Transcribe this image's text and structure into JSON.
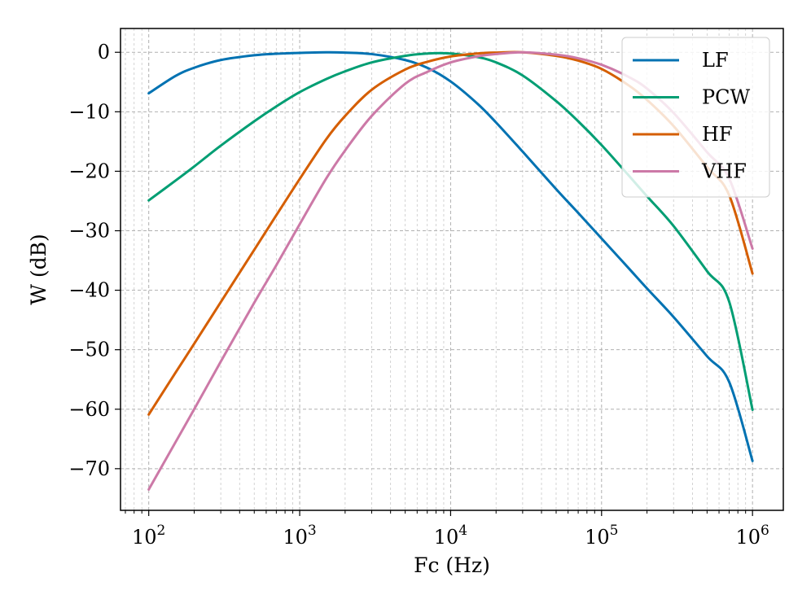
{
  "chart_data": {
    "type": "line",
    "title": "",
    "xlabel": "Fc (Hz)",
    "ylabel": "W (dB)",
    "xscale": "log",
    "xlim": [
      65,
      1600000
    ],
    "ylim": [
      -77,
      4
    ],
    "x_ticks": [
      {
        "value": 100,
        "base": "10",
        "exp": "2"
      },
      {
        "value": 1000,
        "base": "10",
        "exp": "3"
      },
      {
        "value": 10000,
        "base": "10",
        "exp": "4"
      },
      {
        "value": 100000,
        "base": "10",
        "exp": "5"
      },
      {
        "value": 1000000,
        "base": "10",
        "exp": "6"
      }
    ],
    "y_ticks": [
      {
        "value": 0,
        "label": "0"
      },
      {
        "value": -10,
        "label": "−10"
      },
      {
        "value": -20,
        "label": "−20"
      },
      {
        "value": -30,
        "label": "−30"
      },
      {
        "value": -40,
        "label": "−40"
      },
      {
        "value": -50,
        "label": "−50"
      },
      {
        "value": -60,
        "label": "−60"
      },
      {
        "value": -70,
        "label": "−70"
      }
    ],
    "grid": true,
    "legend_position": "top-right",
    "series": [
      {
        "name": "LF",
        "color": "#0072b2",
        "x": [
          100,
          150,
          200,
          300,
          500,
          700,
          1000,
          1500,
          2000,
          3000,
          5000,
          7000,
          10000,
          15000,
          20000,
          30000,
          50000,
          70000,
          100000,
          150000,
          200000,
          300000,
          500000,
          700000,
          1000000
        ],
        "y": [
          -6.9,
          -4.0,
          -2.6,
          -1.3,
          -0.5,
          -0.25,
          -0.1,
          0.0,
          -0.05,
          -0.3,
          -1.3,
          -2.6,
          -4.9,
          -8.6,
          -11.8,
          -16.7,
          -23.0,
          -27.0,
          -31.3,
          -36.2,
          -39.7,
          -44.5,
          -51.1,
          -55.4,
          -68.7
        ]
      },
      {
        "name": "PCW",
        "color": "#009e73",
        "x": [
          100,
          150,
          200,
          300,
          500,
          700,
          1000,
          1500,
          2000,
          3000,
          5000,
          7000,
          10000,
          15000,
          20000,
          30000,
          50000,
          70000,
          100000,
          150000,
          200000,
          300000,
          500000,
          700000,
          1000000
        ],
        "y": [
          -24.9,
          -21.6,
          -19.2,
          -15.7,
          -11.6,
          -9.1,
          -6.7,
          -4.5,
          -3.2,
          -1.7,
          -0.6,
          -0.2,
          -0.2,
          -0.8,
          -1.7,
          -3.9,
          -8.2,
          -11.6,
          -15.6,
          -20.6,
          -24.2,
          -29.2,
          -36.8,
          -41.9,
          -60.1
        ]
      },
      {
        "name": "HF",
        "color": "#d55e00",
        "x": [
          100,
          150,
          200,
          300,
          500,
          700,
          1000,
          1500,
          2000,
          3000,
          5000,
          7000,
          10000,
          15000,
          20000,
          30000,
          50000,
          70000,
          100000,
          150000,
          200000,
          300000,
          500000,
          700000,
          1000000
        ],
        "y": [
          -60.9,
          -53.9,
          -49.0,
          -42.0,
          -33.2,
          -27.4,
          -21.3,
          -14.6,
          -10.7,
          -6.3,
          -2.9,
          -1.6,
          -0.7,
          -0.2,
          -0.05,
          0.0,
          -0.6,
          -1.4,
          -2.8,
          -5.5,
          -8.0,
          -12.4,
          -19.3,
          -24.0,
          -37.2
        ]
      },
      {
        "name": "VHF",
        "color": "#cc79a7",
        "x": [
          100,
          150,
          200,
          300,
          500,
          700,
          1000,
          1500,
          2000,
          3000,
          5000,
          7000,
          10000,
          15000,
          20000,
          30000,
          50000,
          70000,
          100000,
          150000,
          200000,
          300000,
          500000,
          700000,
          1000000
        ],
        "y": [
          -73.5,
          -65.6,
          -60.0,
          -52.0,
          -42.1,
          -35.8,
          -28.9,
          -21.2,
          -16.5,
          -10.7,
          -5.3,
          -3.3,
          -1.7,
          -0.7,
          -0.3,
          0.0,
          -0.4,
          -1.0,
          -2.1,
          -4.1,
          -6.1,
          -10.2,
          -16.8,
          -21.2,
          -33.0
        ]
      }
    ]
  }
}
